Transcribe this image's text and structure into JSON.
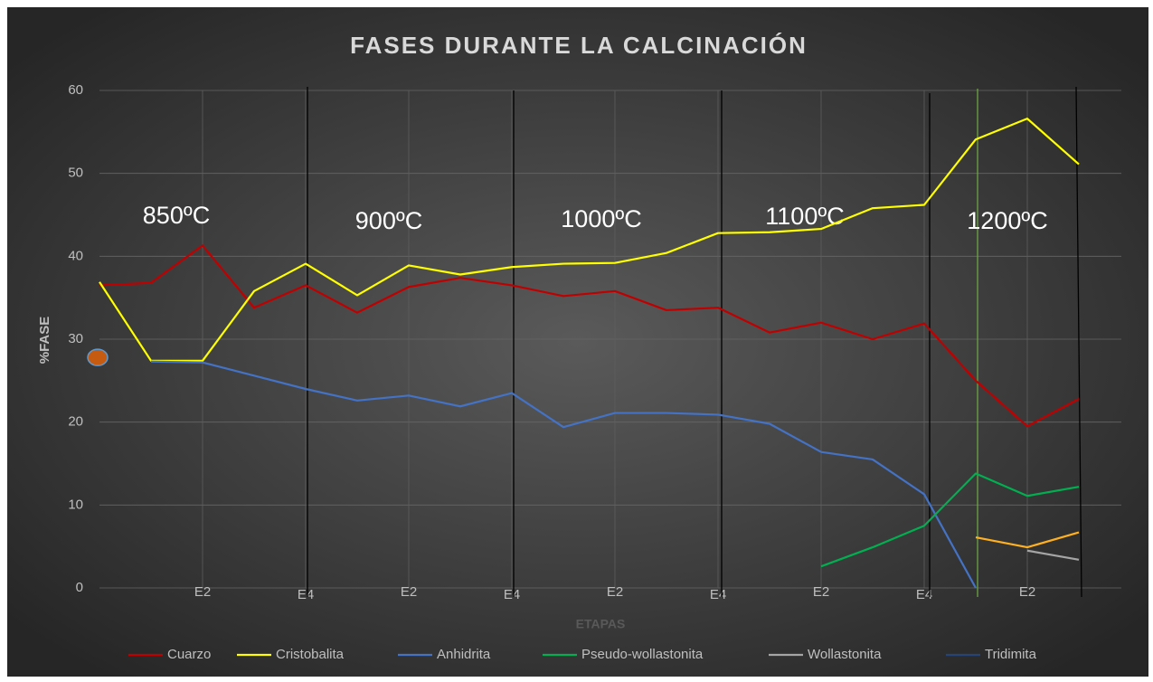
{
  "chart_data": {
    "type": "line",
    "title": "FASES DURANTE LA CALCINACIÓN",
    "x_label": "ETAPAS",
    "y_label": "%FASE",
    "annotations": [
      "850ºC",
      "900ºC",
      "1000ºC",
      "1100ºC",
      "1200ºC"
    ],
    "categories": [
      null,
      null,
      "E2",
      null,
      "E4",
      null,
      "E2",
      null,
      "E4",
      null,
      "E2",
      null,
      "E4",
      null,
      "E2",
      null,
      "E4",
      null,
      "E2",
      null
    ],
    "ylim": [
      0,
      60
    ],
    "yticks": [
      0,
      10,
      20,
      30,
      40,
      50,
      60
    ],
    "grid": true,
    "legend": "bottom",
    "series": [
      {
        "name": "Cuarzo",
        "color": "#c00000",
        "values": [
          36.5,
          36.8,
          41.3,
          33.8,
          36.5,
          33.2,
          36.3,
          37.4,
          36.5,
          35.2,
          35.8,
          33.5,
          33.8,
          30.8,
          32.0,
          30.0,
          31.9,
          25.0,
          19.5,
          22.8
        ]
      },
      {
        "name": "Cristobalita",
        "color": "#ffff00",
        "values": [
          36.9,
          27.4,
          27.4,
          35.8,
          39.1,
          35.3,
          38.9,
          37.8,
          38.7,
          39.1,
          39.2,
          40.4,
          42.8,
          42.9,
          43.3,
          45.8,
          46.2,
          54.1,
          56.6,
          51.1
        ]
      },
      {
        "name": "Anhidrita",
        "color": "#4472c4",
        "values": [
          null,
          27.3,
          27.2,
          25.6,
          24.0,
          22.6,
          23.2,
          21.9,
          23.5,
          19.4,
          21.1,
          21.1,
          20.9,
          19.8,
          16.4,
          15.5,
          11.3,
          0,
          null,
          null
        ]
      },
      {
        "name": "Pseudo-wollastonita",
        "color": "#00b050",
        "values": [
          null,
          null,
          null,
          null,
          null,
          null,
          null,
          null,
          null,
          null,
          null,
          null,
          null,
          null,
          2.6,
          4.9,
          7.5,
          13.8,
          11.1,
          12.2
        ]
      },
      {
        "name": "Wollastonita",
        "color": "#a5a5a5",
        "values": [
          null,
          null,
          null,
          null,
          null,
          null,
          null,
          null,
          null,
          null,
          null,
          null,
          null,
          null,
          null,
          null,
          null,
          null,
          4.5,
          3.4
        ]
      },
      {
        "name": "Tridimita",
        "color": "#264478",
        "values": [
          null,
          null,
          null,
          null,
          null,
          null,
          null,
          null,
          null,
          null,
          null,
          null,
          null,
          null,
          null,
          null,
          null,
          null,
          null,
          null
        ]
      },
      {
        "color": "#c55a11",
        "values": [
          27.8,
          null,
          null,
          null,
          null,
          null,
          null,
          null,
          null,
          null,
          null,
          null,
          null,
          null,
          null,
          null,
          null,
          null,
          null,
          null
        ]
      },
      {
        "color": "#ffb020",
        "values": [
          null,
          null,
          null,
          null,
          null,
          null,
          null,
          null,
          null,
          null,
          null,
          null,
          null,
          null,
          null,
          null,
          null,
          6.1,
          4.9,
          6.7
        ]
      }
    ]
  }
}
